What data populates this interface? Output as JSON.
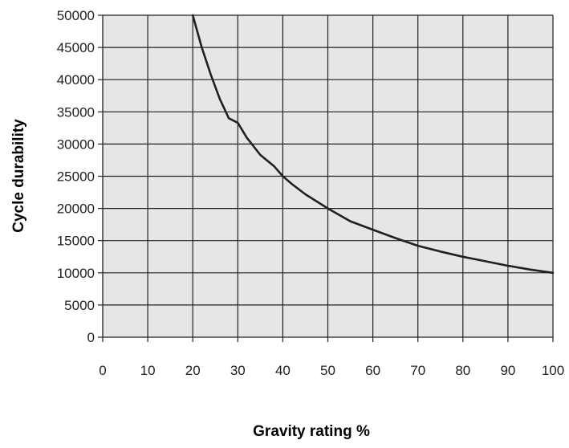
{
  "chart_data": {
    "type": "line",
    "xlabel": "Gravity rating %",
    "ylabel": "Cycle durability",
    "xlim": [
      0,
      100
    ],
    "ylim": [
      0,
      50000
    ],
    "x_ticks": [
      "0",
      "10",
      "20",
      "30",
      "40",
      "50",
      "60",
      "70",
      "80",
      "90",
      "100"
    ],
    "y_ticks": [
      "0",
      "5000",
      "10000",
      "15000",
      "20000",
      "25000",
      "30000",
      "35000",
      "40000",
      "45000",
      "50000"
    ],
    "grid": true,
    "legend": false,
    "series": [
      {
        "x": [
          20,
          22,
          24,
          26,
          28,
          30,
          32,
          35,
          38,
          40,
          42,
          45,
          50,
          55,
          60,
          65,
          70,
          75,
          80,
          85,
          90,
          95,
          100
        ],
        "y": [
          50000,
          45000,
          40800,
          37000,
          34000,
          33300,
          31000,
          28300,
          26600,
          25000,
          23800,
          22200,
          20000,
          18000,
          16700,
          15400,
          14200,
          13300,
          12500,
          11800,
          11100,
          10500,
          10000
        ]
      }
    ],
    "colors": {
      "plot_background": "#e6e6e7",
      "grid": "#231f20",
      "line": "#231f20",
      "text": "#231f20"
    }
  }
}
